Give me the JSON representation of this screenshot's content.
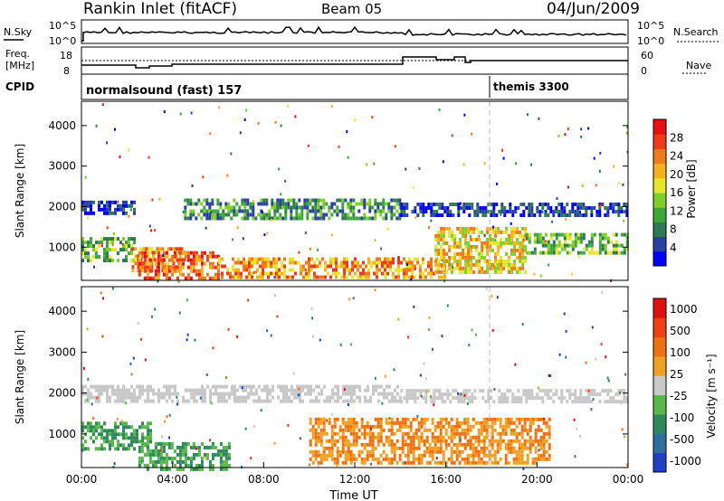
{
  "header": {
    "title": "Rankin Inlet (fitACF)",
    "beam": "Beam 05",
    "date": "04/Jun/2009"
  },
  "strip": {
    "nsky_label": "N.Sky",
    "nsky_ticks": [
      "10^5",
      "10^0"
    ],
    "nsearch_label": "N.Search",
    "nsearch_ticks": [
      "10^5",
      "10^0"
    ],
    "freq_label_1": "Freq.",
    "freq_label_2": "[MHz]",
    "freq_ticks": [
      "18",
      "8"
    ],
    "nave_label": "Nave",
    "nave_ticks": [
      "60",
      "0"
    ],
    "cpid_label": "CPID",
    "cpid_items": [
      {
        "label": "normalsound (fast) 157",
        "start_hour": 0
      },
      {
        "label": "themis 3300",
        "start_hour": 18
      }
    ]
  },
  "chart_data": [
    {
      "type": "heatmap",
      "panel": "power",
      "ylabel": "Slant Range [km]",
      "ylim": [
        180,
        4600
      ],
      "yticks": [
        "1000",
        "2000",
        "3000",
        "4000"
      ],
      "xlim": [
        0,
        24
      ],
      "colorbar": {
        "label": "Power [dB]",
        "ticks": [
          "4",
          "8",
          "12",
          "16",
          "20",
          "24",
          "28"
        ],
        "colors": [
          "#0000ff",
          "#2a3fa8",
          "#2e7a52",
          "#3ca83c",
          "#7fcf2a",
          "#e6e62a",
          "#f5b21a",
          "#f07a1a",
          "#f03a1a",
          "#e81010"
        ]
      },
      "bands": [
        {
          "start": 0.0,
          "end": 2.3,
          "range": [
            1850,
            2150
          ],
          "level": "low"
        },
        {
          "start": 0.0,
          "end": 2.3,
          "range": [
            700,
            1250
          ],
          "level": "mid"
        },
        {
          "start": 2.2,
          "end": 4.5,
          "range": [
            400,
            1000
          ],
          "level": "high"
        },
        {
          "start": 4.5,
          "end": 14.0,
          "range": [
            1700,
            2200
          ],
          "level": "low-mid"
        },
        {
          "start": 14.0,
          "end": 24.0,
          "range": [
            1800,
            2100
          ],
          "level": "low"
        },
        {
          "start": 2.5,
          "end": 6.0,
          "range": [
            200,
            900
          ],
          "level": "very-high"
        },
        {
          "start": 6.0,
          "end": 16.0,
          "range": [
            250,
            750
          ],
          "level": "high"
        },
        {
          "start": 15.5,
          "end": 19.5,
          "range": [
            400,
            1500
          ],
          "level": "mid-high"
        },
        {
          "start": 19.5,
          "end": 24.0,
          "range": [
            900,
            1350
          ],
          "level": "mid"
        }
      ]
    },
    {
      "type": "heatmap",
      "panel": "velocity",
      "ylabel": "Slant Range [km]",
      "ylim": [
        180,
        4600
      ],
      "yticks": [
        "1000",
        "2000",
        "3000",
        "4000"
      ],
      "xlim": [
        0,
        24
      ],
      "xticks": [
        "00:00",
        "04:00",
        "08:00",
        "12:00",
        "16:00",
        "20:00",
        "00:00"
      ],
      "xlabel": "Time UT",
      "colorbar": {
        "label": "Velocity [m s⁻¹]",
        "ticks": [
          "1000",
          "500",
          "100",
          "25",
          "-25",
          "-100",
          "-500",
          "-1000"
        ],
        "colors": [
          "#2040c8",
          "#2e6fa0",
          "#2e8a5a",
          "#5ab84a",
          "#c8c8c8",
          "#f0a020",
          "#f07010",
          "#f04010",
          "#e01010"
        ]
      },
      "bands": [
        {
          "start": 0.0,
          "end": 14.0,
          "range": [
            1800,
            2200
          ],
          "level": "grey"
        },
        {
          "start": 14.0,
          "end": 24.0,
          "range": [
            1800,
            2100
          ],
          "level": "grey"
        },
        {
          "start": 0.0,
          "end": 3.0,
          "range": [
            600,
            1300
          ],
          "level": "green"
        },
        {
          "start": 2.5,
          "end": 6.5,
          "range": [
            180,
            800
          ],
          "level": "green"
        },
        {
          "start": 10.0,
          "end": 20.5,
          "range": [
            300,
            1400
          ],
          "level": "orange"
        }
      ]
    }
  ]
}
